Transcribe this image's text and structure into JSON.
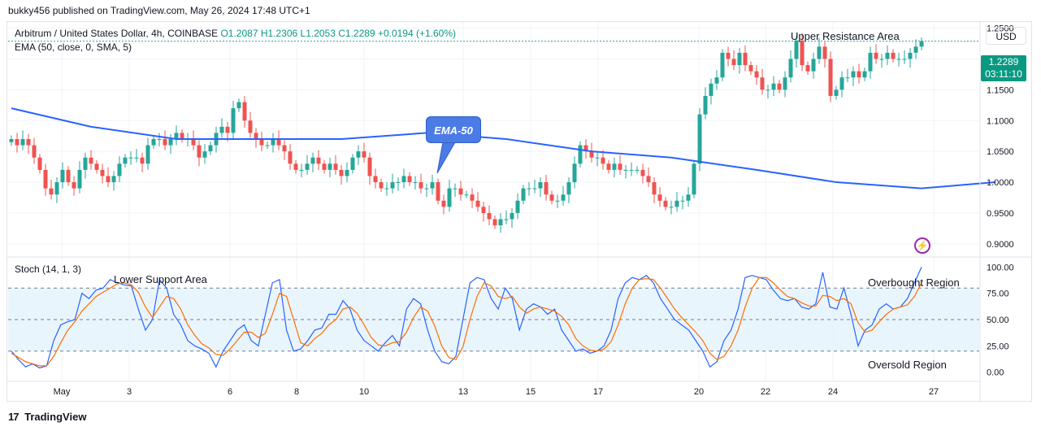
{
  "header": "bukky456 published on TradingView.com, May 26, 2024 17:48 UTC+1",
  "legend": {
    "symbol": "Arbitrum / United States Dollar, 4h, COINBASE",
    "ohlc": "O1.2087  H1.2306  L1.2053  C1.2289  +0.0194 (+1.60%)",
    "ema": "EMA (50, close, 0, SMA, 5)",
    "stoch": "Stoch (14, 1, 3)"
  },
  "annotations": {
    "upper_resistance": "Upper Resistance Area",
    "lower_support": "Lower Support Area",
    "overbought": "Overbought Region",
    "oversold": "Oversold Region",
    "ema_callout": "EMA-50"
  },
  "currency": "USD",
  "price_tag": {
    "price": "1.2289",
    "countdown": "03:11:10"
  },
  "footer": "TradingView",
  "colors": {
    "up": "#26a69a",
    "down": "#ef5350",
    "ema": "#2962ff",
    "stoch_k": "#2962ff",
    "stoch_d": "#ff6d00",
    "band": "#e3f2fd"
  },
  "chart_data": [
    {
      "type": "candlestick",
      "ylim": [
        0.88,
        1.26
      ],
      "y_ticks": [
        "1.2500",
        "1.2000",
        "1.1500",
        "1.1000",
        "1.0500",
        "1.0000",
        "0.9500",
        "0.9000"
      ],
      "y_tick_values": [
        1.25,
        1.2,
        1.15,
        1.1,
        1.05,
        1.0,
        0.95,
        0.9
      ],
      "x_ticks": [
        "May",
        "3",
        "6",
        "8",
        "10",
        "13",
        "15",
        "17",
        "20",
        "22",
        "24",
        "27"
      ],
      "close_path": [
        1.07,
        1.06,
        1.07,
        1.06,
        1.04,
        1.02,
        0.99,
        0.98,
        1.0,
        1.02,
        1.0,
        0.99,
        1.02,
        1.04,
        1.03,
        1.02,
        1.01,
        1.0,
        1.01,
        1.03,
        1.04,
        1.04,
        1.04,
        1.03,
        1.06,
        1.07,
        1.07,
        1.06,
        1.07,
        1.08,
        1.07,
        1.07,
        1.06,
        1.04,
        1.05,
        1.06,
        1.08,
        1.09,
        1.08,
        1.12,
        1.13,
        1.1,
        1.08,
        1.07,
        1.06,
        1.06,
        1.07,
        1.06,
        1.05,
        1.03,
        1.02,
        1.02,
        1.03,
        1.04,
        1.03,
        1.02,
        1.03,
        1.02,
        1.01,
        1.02,
        1.04,
        1.05,
        1.04,
        1.01,
        1.0,
        0.99,
        0.99,
        1.0,
        1.0,
        1.01,
        1.0,
        1.0,
        0.99,
        0.99,
        1.0,
        0.97,
        0.96,
        0.99,
        0.99,
        0.98,
        0.98,
        0.97,
        0.96,
        0.95,
        0.94,
        0.93,
        0.94,
        0.94,
        0.95,
        0.97,
        0.99,
        0.99,
        0.99,
        1.0,
        0.98,
        0.97,
        0.97,
        0.98,
        1.0,
        1.03,
        1.06,
        1.05,
        1.04,
        1.04,
        1.03,
        1.02,
        1.03,
        1.02,
        1.02,
        1.02,
        1.02,
        1.01,
        1.0,
        0.98,
        0.97,
        0.96,
        0.96,
        0.97,
        0.97,
        0.98,
        1.03,
        1.11,
        1.14,
        1.16,
        1.17,
        1.21,
        1.2,
        1.19,
        1.21,
        1.19,
        1.18,
        1.17,
        1.15,
        1.15,
        1.16,
        1.15,
        1.17,
        1.2,
        1.23,
        1.19,
        1.18,
        1.2,
        1.22,
        1.2,
        1.14,
        1.15,
        1.17,
        1.17,
        1.18,
        1.17,
        1.18,
        1.21,
        1.2,
        1.2,
        1.21,
        1.2,
        1.2,
        1.2,
        1.21,
        1.22,
        1.2289
      ],
      "ema50": {
        "x": [
          0,
          14,
          29,
          44,
          58,
          73,
          87,
          102,
          116,
          131,
          145,
          160,
          173
        ],
        "y": [
          1.12,
          1.09,
          1.07,
          1.07,
          1.07,
          1.08,
          1.07,
          1.05,
          1.04,
          1.02,
          1.0,
          0.99,
          1.0
        ]
      },
      "last_price": 1.2289
    },
    {
      "type": "line",
      "ylim": [
        -8,
        108
      ],
      "y_ticks": [
        "100.00",
        "75.00",
        "50.00",
        "25.00",
        "0.00"
      ],
      "y_tick_values": [
        100,
        75,
        50,
        25,
        0
      ],
      "levels": [
        80,
        50,
        20
      ],
      "series": [
        {
          "color": "#2962ff",
          "values": [
            20,
            12,
            5,
            8,
            4,
            6,
            30,
            45,
            48,
            50,
            75,
            70,
            78,
            80,
            88,
            85,
            83,
            82,
            60,
            40,
            50,
            88,
            80,
            55,
            45,
            30,
            25,
            22,
            18,
            5,
            20,
            30,
            40,
            45,
            30,
            25,
            55,
            85,
            88,
            40,
            20,
            22,
            30,
            40,
            42,
            55,
            55,
            68,
            60,
            40,
            30,
            25,
            20,
            28,
            35,
            25,
            60,
            70,
            65,
            40,
            20,
            10,
            8,
            15,
            50,
            85,
            90,
            88,
            70,
            60,
            80,
            70,
            40,
            60,
            65,
            62,
            55,
            60,
            40,
            30,
            20,
            22,
            18,
            20,
            25,
            40,
            70,
            85,
            90,
            88,
            92,
            85,
            70,
            60,
            50,
            45,
            40,
            30,
            20,
            5,
            10,
            30,
            40,
            60,
            90,
            92,
            90,
            88,
            78,
            70,
            68,
            70,
            62,
            60,
            65,
            95,
            62,
            60,
            80,
            55,
            25,
            40,
            45,
            60,
            65,
            60,
            62,
            70,
            85,
            100
          ]
        },
        {
          "color": "#ff6d00",
          "values": [
            18,
            14,
            10,
            8,
            6,
            6,
            15,
            28,
            40,
            48,
            58,
            65,
            72,
            76,
            80,
            84,
            85,
            83,
            76,
            62,
            52,
            62,
            72,
            70,
            60,
            45,
            35,
            27,
            23,
            17,
            16,
            22,
            30,
            38,
            38,
            33,
            37,
            55,
            75,
            72,
            50,
            28,
            25,
            32,
            37,
            45,
            50,
            60,
            62,
            56,
            45,
            33,
            26,
            25,
            28,
            29,
            38,
            52,
            62,
            58,
            44,
            25,
            14,
            12,
            24,
            50,
            72,
            85,
            82,
            72,
            70,
            72,
            62,
            56,
            60,
            62,
            60,
            58,
            53,
            45,
            32,
            25,
            21,
            20,
            22,
            29,
            45,
            65,
            80,
            88,
            89,
            88,
            80,
            70,
            60,
            52,
            45,
            38,
            30,
            18,
            12,
            15,
            25,
            40,
            62,
            80,
            90,
            90,
            85,
            78,
            72,
            70,
            66,
            63,
            63,
            73,
            72,
            68,
            70,
            65,
            47,
            38,
            40,
            48,
            55,
            60,
            62,
            64,
            72,
            85
          ]
        }
      ]
    }
  ]
}
